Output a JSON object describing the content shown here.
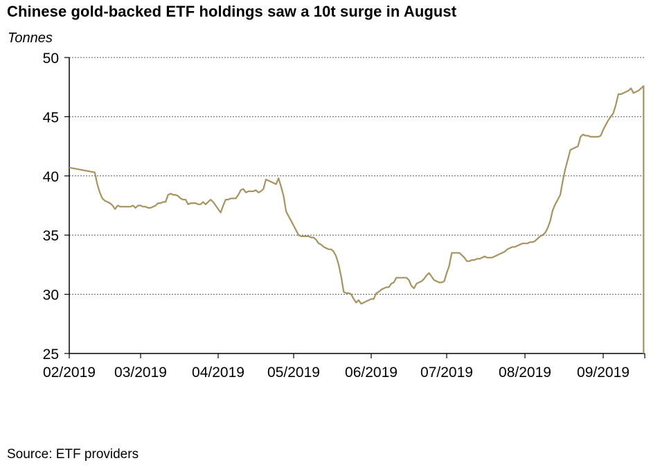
{
  "chart_data": {
    "type": "line",
    "title": "Chinese gold-backed ETF holdings saw a 10t surge in August",
    "ylabel": "Tonnes",
    "xlabel": "",
    "source": "Source: ETF providers",
    "ylim": [
      25,
      50
    ],
    "yticks": [
      25,
      30,
      35,
      40,
      45,
      50
    ],
    "grid": "horizontal dashed",
    "line_color": "#A8925F",
    "x_unit": "days since 2019-02-01",
    "xlim": [
      0,
      228
    ],
    "xticks": [
      {
        "day": 0,
        "label": "02/2019"
      },
      {
        "day": 28,
        "label": "03/2019"
      },
      {
        "day": 59,
        "label": "04/2019"
      },
      {
        "day": 89,
        "label": "05/2019"
      },
      {
        "day": 120,
        "label": "06/2019"
      },
      {
        "day": 150,
        "label": "07/2019"
      },
      {
        "day": 181,
        "label": "08/2019"
      },
      {
        "day": 212,
        "label": "09/2019"
      }
    ],
    "series": [
      {
        "name": "Chinese gold-backed ETF holdings",
        "x": [
          0,
          10,
          11,
          12,
          13,
          14,
          15,
          16,
          17,
          18,
          19,
          20,
          21,
          22,
          23,
          24,
          25,
          26,
          27,
          28,
          29,
          30,
          31,
          32,
          33,
          34,
          35,
          36,
          37,
          38,
          39,
          40,
          41,
          42,
          43,
          44,
          45,
          46,
          47,
          48,
          49,
          50,
          51,
          52,
          53,
          54,
          55,
          56,
          57,
          58,
          59,
          60,
          61,
          62,
          63,
          64,
          65,
          66,
          67,
          68,
          69,
          70,
          71,
          72,
          73,
          74,
          75,
          76,
          77,
          78,
          79,
          80,
          81,
          82,
          83,
          84,
          85,
          86,
          87,
          88,
          89,
          90,
          91,
          92,
          93,
          94,
          95,
          96,
          97,
          98,
          99,
          100,
          101,
          102,
          103,
          104,
          105,
          106,
          107,
          108,
          109,
          110,
          111,
          112,
          113,
          114,
          115,
          116,
          117,
          118,
          119,
          120,
          121,
          122,
          123,
          124,
          125,
          126,
          127,
          128,
          129,
          130,
          131,
          132,
          133,
          134,
          135,
          136,
          137,
          138,
          139,
          140,
          141,
          142,
          143,
          144,
          145,
          146,
          147,
          148,
          149,
          150,
          151,
          152,
          153,
          154,
          155,
          156,
          157,
          158,
          159,
          160,
          161,
          162,
          163,
          164,
          165,
          166,
          167,
          168,
          169,
          170,
          171,
          172,
          173,
          174,
          175,
          176,
          177,
          178,
          179,
          180,
          181,
          182,
          183,
          184,
          185,
          186,
          187,
          188,
          189,
          190,
          191,
          192,
          193,
          194,
          195,
          196,
          197,
          198,
          199,
          200,
          201,
          202,
          203,
          204,
          205,
          206,
          207,
          208,
          209,
          210,
          211,
          212,
          213,
          214,
          215,
          216,
          217,
          218,
          219,
          220,
          221,
          222,
          223,
          224,
          225,
          226,
          227,
          228,
          228
        ],
        "values": [
          40.7,
          40.3,
          39.3,
          38.6,
          38.1,
          37.9,
          37.8,
          37.7,
          37.5,
          37.2,
          37.5,
          37.4,
          37.4,
          37.4,
          37.4,
          37.4,
          37.5,
          37.3,
          37.5,
          37.5,
          37.4,
          37.4,
          37.3,
          37.3,
          37.4,
          37.5,
          37.7,
          37.7,
          37.8,
          37.8,
          38.4,
          38.5,
          38.4,
          38.4,
          38.3,
          38.1,
          38.0,
          38.0,
          37.6,
          37.7,
          37.7,
          37.7,
          37.6,
          37.6,
          37.8,
          37.6,
          37.8,
          38.0,
          37.8,
          37.5,
          37.2,
          36.9,
          37.5,
          38.0,
          38.0,
          38.1,
          38.1,
          38.1,
          38.4,
          38.8,
          38.9,
          38.6,
          38.7,
          38.7,
          38.7,
          38.8,
          38.6,
          38.7,
          38.9,
          39.7,
          39.6,
          39.5,
          39.4,
          39.3,
          39.8,
          39.1,
          38.3,
          37.0,
          36.6,
          36.2,
          35.8,
          35.4,
          35.0,
          34.9,
          34.9,
          34.9,
          34.9,
          34.8,
          34.8,
          34.6,
          34.3,
          34.2,
          34.0,
          33.9,
          33.8,
          33.8,
          33.6,
          33.2,
          32.5,
          31.5,
          30.2,
          30.1,
          30.1,
          30.0,
          29.6,
          29.3,
          29.5,
          29.2,
          29.3,
          29.4,
          29.5,
          29.6,
          29.6,
          30.1,
          30.2,
          30.4,
          30.5,
          30.6,
          30.6,
          30.9,
          31.0,
          31.4,
          31.4,
          31.4,
          31.4,
          31.4,
          31.2,
          30.7,
          30.5,
          30.9,
          31.0,
          31.1,
          31.3,
          31.6,
          31.8,
          31.5,
          31.2,
          31.1,
          31.0,
          31.0,
          31.1,
          31.8,
          32.4,
          33.5,
          33.5,
          33.5,
          33.5,
          33.3,
          33.1,
          32.8,
          32.8,
          32.9,
          32.9,
          33.0,
          33.0,
          33.1,
          33.2,
          33.1,
          33.1,
          33.1,
          33.2,
          33.3,
          33.4,
          33.5,
          33.6,
          33.8,
          33.9,
          34.0,
          34.0,
          34.1,
          34.2,
          34.3,
          34.3,
          34.3,
          34.4,
          34.4,
          34.5,
          34.7,
          34.9,
          35.0,
          35.2,
          35.6,
          36.2,
          37.1,
          37.6,
          38.0,
          38.4,
          39.6,
          40.6,
          41.4,
          42.2,
          42.3,
          42.4,
          42.5,
          43.3,
          43.5,
          43.4,
          43.4,
          43.3,
          43.3,
          43.3,
          43.3,
          43.4,
          43.9,
          44.3,
          44.7,
          45.0,
          45.3,
          46.0,
          46.9,
          46.9,
          47.0,
          47.1,
          47.2,
          47.4,
          47.0,
          47.1,
          47.2,
          47.4,
          47.6,
          25.0
        ]
      }
    ]
  }
}
